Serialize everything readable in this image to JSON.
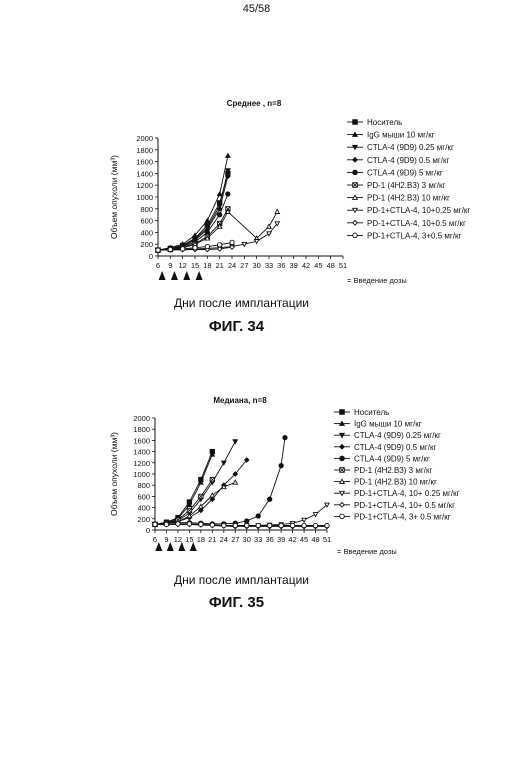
{
  "page": {
    "number": "45/58"
  },
  "figures": [
    {
      "caption": "ФИГ. 34",
      "x_axis_title": "Дни после имплантации",
      "dose_note": "= Введение дозы"
    },
    {
      "caption": "ФИГ. 35",
      "x_axis_title": "Дни после имплантации",
      "dose_note": "= Введение дозы"
    }
  ],
  "chart_data": [
    {
      "type": "line",
      "title": "Среднее , n=8",
      "xlabel": "",
      "ylabel": "Объем опухоли (мм³)",
      "x_ticks": [
        6,
        9,
        12,
        15,
        18,
        21,
        24,
        27,
        30,
        33,
        36,
        39,
        42,
        45,
        48,
        51
      ],
      "y_ticks": [
        0,
        200,
        400,
        600,
        800,
        1000,
        1200,
        1400,
        1600,
        1800,
        2000
      ],
      "xlim": [
        6,
        51
      ],
      "ylim": [
        0,
        2000
      ],
      "dose_days": [
        7,
        10,
        13,
        16
      ],
      "legend_position": "right",
      "series": [
        {
          "name": "Носитель",
          "marker": "square-filled",
          "x": [
            6,
            9,
            12,
            15,
            18,
            21,
            23
          ],
          "y": [
            100,
            130,
            180,
            300,
            520,
            900,
            1400
          ]
        },
        {
          "name": "IgG мыши 10 мг/кг",
          "marker": "triangle-filled",
          "x": [
            6,
            9,
            12,
            15,
            18,
            21,
            23
          ],
          "y": [
            100,
            140,
            200,
            350,
            600,
            1050,
            1700
          ]
        },
        {
          "name": "CTLA-4 (9D9) 0.25 мг/кг",
          "marker": "triangle-down-filled",
          "x": [
            6,
            9,
            12,
            15,
            18,
            21,
            23
          ],
          "y": [
            100,
            125,
            175,
            290,
            480,
            850,
            1450
          ]
        },
        {
          "name": "CTLA-4 (9D9) 0.5 мг/кг",
          "marker": "diamond-filled",
          "x": [
            6,
            9,
            12,
            15,
            18,
            21,
            23
          ],
          "y": [
            100,
            120,
            165,
            270,
            450,
            800,
            1350
          ]
        },
        {
          "name": "CTLA-4 (9D9) 5 мг/кг",
          "marker": "circle-filled",
          "x": [
            6,
            9,
            12,
            15,
            18,
            21,
            23
          ],
          "y": [
            100,
            115,
            150,
            240,
            400,
            700,
            1050
          ]
        },
        {
          "name": "PD-1 (4H2.B3) 3 мг/кг",
          "marker": "square-cross",
          "x": [
            6,
            9,
            12,
            15,
            18,
            21,
            23
          ],
          "y": [
            100,
            110,
            140,
            210,
            330,
            550,
            800
          ]
        },
        {
          "name": "PD-1 (4H2.B3) 10 мг/кг",
          "marker": "triangle-open",
          "x": [
            6,
            9,
            12,
            15,
            18,
            21,
            23,
            30,
            33,
            35
          ],
          "y": [
            100,
            110,
            135,
            200,
            300,
            500,
            750,
            300,
            500,
            750
          ]
        },
        {
          "name": "PD-1+CTLA-4, 10+0.25 мг/кг",
          "marker": "triangle-down-open",
          "x": [
            6,
            9,
            12,
            15,
            18,
            21,
            24,
            27,
            30,
            33,
            35
          ],
          "y": [
            100,
            105,
            110,
            120,
            130,
            140,
            160,
            200,
            250,
            380,
            550
          ]
        },
        {
          "name": "PD-1+CTLA-4, 10+0.5 мг/кг",
          "marker": "diamond-open",
          "x": [
            6,
            9,
            12,
            15,
            18,
            21,
            24
          ],
          "y": [
            100,
            100,
            105,
            110,
            110,
            120,
            150
          ]
        },
        {
          "name": "PD-1+CTLA-4, 3+0.5 мг/кг",
          "marker": "circle-open",
          "x": [
            6,
            9,
            12,
            15,
            18,
            21,
            24
          ],
          "y": [
            100,
            110,
            120,
            140,
            160,
            190,
            230
          ]
        }
      ]
    },
    {
      "type": "line",
      "title": "Медиана, n=8",
      "xlabel": "",
      "ylabel": "Объем опухоли (мм³)",
      "x_ticks": [
        6,
        9,
        12,
        15,
        18,
        21,
        24,
        27,
        30,
        33,
        36,
        39,
        42,
        45,
        48,
        51
      ],
      "y_ticks": [
        0,
        200,
        400,
        600,
        800,
        1000,
        1200,
        1400,
        1600,
        1800,
        2000
      ],
      "xlim": [
        6,
        51
      ],
      "ylim": [
        0,
        2000
      ],
      "dose_days": [
        7,
        10,
        13,
        16
      ],
      "legend_position": "right",
      "series": [
        {
          "name": "Носитель",
          "marker": "square-filled",
          "x": [
            6,
            9,
            12,
            15,
            18,
            21
          ],
          "y": [
            100,
            140,
            220,
            500,
            900,
            1400
          ]
        },
        {
          "name": "IgG мыши 10 мг/кг",
          "marker": "triangle-filled",
          "x": [
            6,
            9,
            12,
            15,
            18,
            21
          ],
          "y": [
            100,
            130,
            200,
            450,
            850,
            1350
          ]
        },
        {
          "name": "CTLA-4 (9D9) 0.25 мг/кг",
          "marker": "triangle-down-filled",
          "x": [
            6,
            9,
            12,
            15,
            18,
            21,
            24,
            27
          ],
          "y": [
            100,
            120,
            170,
            300,
            550,
            850,
            1200,
            1580
          ]
        },
        {
          "name": "CTLA-4 (9D9) 0.5 мг/кг",
          "marker": "diamond-filled",
          "x": [
            6,
            9,
            12,
            15,
            18,
            21,
            24,
            27,
            30
          ],
          "y": [
            100,
            115,
            150,
            220,
            350,
            550,
            800,
            1000,
            1250
          ]
        },
        {
          "name": "CTLA-4 (9D9) 5 мг/кг",
          "marker": "circle-filled",
          "x": [
            6,
            9,
            12,
            15,
            18,
            21,
            24,
            27,
            30,
            33,
            36,
            39,
            40
          ],
          "y": [
            100,
            120,
            130,
            130,
            120,
            110,
            110,
            120,
            160,
            250,
            550,
            1150,
            1650
          ]
        },
        {
          "name": "PD-1 (4H2.B3) 3 мг/кг",
          "marker": "square-cross",
          "x": [
            6,
            9,
            12,
            15,
            18,
            21
          ],
          "y": [
            100,
            120,
            180,
            350,
            600,
            900
          ]
        },
        {
          "name": "PD-1 (4H2.B3) 10 мг/кг",
          "marker": "triangle-open",
          "x": [
            6,
            9,
            12,
            15,
            18,
            21,
            24,
            27
          ],
          "y": [
            100,
            110,
            150,
            250,
            420,
            620,
            770,
            850
          ]
        },
        {
          "name": "PD-1+CTLA-4, 10+ 0.25 мг/кг",
          "marker": "triangle-down-open",
          "x": [
            6,
            9,
            12,
            15,
            18,
            21,
            24,
            27,
            30,
            33,
            36,
            39,
            42,
            45,
            48,
            51
          ],
          "y": [
            100,
            100,
            100,
            100,
            100,
            90,
            80,
            80,
            80,
            80,
            90,
            100,
            120,
            180,
            280,
            450
          ]
        },
        {
          "name": "PD-1+CTLA-4, 10+ 0.5 мг/кг",
          "marker": "diamond-open",
          "x": [
            6,
            9,
            12,
            15,
            18,
            21,
            24,
            27,
            30,
            33,
            36,
            39,
            42,
            45,
            48,
            51
          ],
          "y": [
            100,
            100,
            100,
            100,
            90,
            80,
            70,
            60,
            60,
            60,
            60,
            60,
            60,
            60,
            60,
            60
          ]
        },
        {
          "name": "PD-1+CTLA-4, 3+ 0.5 мг/кг",
          "marker": "circle-open",
          "x": [
            6,
            9,
            12,
            15,
            18,
            21,
            24,
            27,
            30,
            33,
            36,
            39,
            42,
            45,
            48,
            51
          ],
          "y": [
            100,
            100,
            110,
            110,
            100,
            90,
            80,
            80,
            80,
            80,
            80,
            80,
            80,
            80,
            80,
            80
          ]
        }
      ]
    }
  ]
}
